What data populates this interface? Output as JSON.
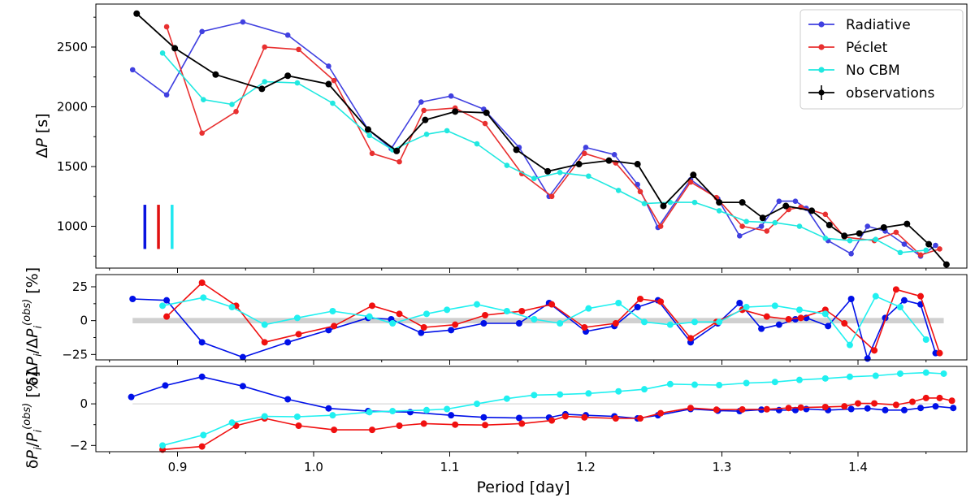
{
  "chart_data": [
    {
      "type": "line",
      "ylabel": "ΔP [s]",
      "ylim": [
        650,
        2860
      ],
      "xlim": [
        0.84,
        1.48
      ],
      "yticks": [
        1000,
        1500,
        2000,
        2500
      ],
      "legend_position": "top-right",
      "legend": [
        "Radiative",
        "Péclet",
        "No CBM",
        "observations"
      ],
      "series": [
        {
          "name": "Radiative",
          "color": "#4040e0",
          "x": [
            0.867,
            0.892,
            0.918,
            0.948,
            0.981,
            1.011,
            1.04,
            1.057,
            1.079,
            1.101,
            1.125,
            1.151,
            1.173,
            1.2,
            1.221,
            1.238,
            1.253,
            1.277,
            1.297,
            1.313,
            1.329,
            1.342,
            1.354,
            1.362,
            1.378,
            1.395,
            1.407,
            1.42,
            1.434,
            1.446,
            1.457
          ],
          "y": [
            2310,
            2100,
            2630,
            2710,
            2600,
            2340,
            1810,
            1650,
            2040,
            2090,
            1980,
            1660,
            1250,
            1660,
            1600,
            1350,
            990,
            1390,
            1230,
            920,
            1000,
            1210,
            1210,
            1150,
            880,
            770,
            1000,
            960,
            850,
            750,
            840
          ]
        },
        {
          "name": "Péclet",
          "color": "#e83030",
          "x": [
            0.892,
            0.918,
            0.943,
            0.964,
            0.989,
            1.015,
            1.043,
            1.063,
            1.081,
            1.104,
            1.126,
            1.153,
            1.175,
            1.199,
            1.222,
            1.24,
            1.255,
            1.277,
            1.296,
            1.315,
            1.333,
            1.349,
            1.358,
            1.376,
            1.39,
            1.412,
            1.428,
            1.446,
            1.46
          ],
          "y": [
            2670,
            1780,
            1960,
            2500,
            2480,
            2220,
            1610,
            1540,
            1970,
            1990,
            1860,
            1440,
            1250,
            1610,
            1530,
            1290,
            1000,
            1370,
            1240,
            1000,
            960,
            1140,
            1160,
            1100,
            910,
            880,
            950,
            760,
            810
          ]
        },
        {
          "name": "No CBM",
          "color": "#20e8e0",
          "x": [
            0.889,
            0.919,
            0.94,
            0.964,
            0.988,
            1.014,
            1.041,
            1.058,
            1.083,
            1.098,
            1.12,
            1.142,
            1.162,
            1.181,
            1.202,
            1.224,
            1.243,
            1.262,
            1.28,
            1.298,
            1.318,
            1.339,
            1.357,
            1.376,
            1.394,
            1.413,
            1.431,
            1.45
          ],
          "y": [
            2450,
            2060,
            2020,
            2210,
            2200,
            2030,
            1760,
            1640,
            1770,
            1800,
            1690,
            1510,
            1400,
            1450,
            1420,
            1300,
            1190,
            1200,
            1200,
            1130,
            1040,
            1030,
            1000,
            900,
            880,
            890,
            780,
            800
          ]
        },
        {
          "name": "observations",
          "color": "#000000",
          "x": [
            0.87,
            0.898,
            0.928,
            0.962,
            0.981,
            1.011,
            1.04,
            1.061,
            1.082,
            1.104,
            1.127,
            1.149,
            1.172,
            1.195,
            1.217,
            1.238,
            1.257,
            1.279,
            1.298,
            1.315,
            1.33,
            1.347,
            1.366,
            1.379,
            1.39,
            1.401,
            1.419,
            1.436,
            1.452,
            1.465
          ],
          "y": [
            2780,
            2490,
            2270,
            2150,
            2260,
            2190,
            1810,
            1630,
            1890,
            1960,
            1950,
            1640,
            1460,
            1520,
            1550,
            1520,
            1170,
            1430,
            1200,
            1200,
            1070,
            1170,
            1130,
            1010,
            920,
            940,
            990,
            1020,
            850,
            680
          ]
        }
      ],
      "markers_vertical": [
        {
          "x": 0.876,
          "y0": 810,
          "y1": 1180,
          "color": "#0a14e0"
        },
        {
          "x": 0.886,
          "y0": 810,
          "y1": 1180,
          "color": "#e01010"
        },
        {
          "x": 0.896,
          "y0": 810,
          "y1": 1180,
          "color": "#20e8f0"
        }
      ]
    },
    {
      "type": "line",
      "ylabel": "δΔP_i/ΔP_i^(obs) [%]",
      "ylim": [
        -29,
        34
      ],
      "xlim": [
        0.84,
        1.48
      ],
      "yticks": [
        -25,
        0,
        25
      ],
      "band": {
        "x0": 0.867,
        "x1": 1.463,
        "y0": -2,
        "y1": 2
      },
      "series": [
        {
          "name": "Radiative",
          "color": "#0010e8",
          "x": [
            0.867,
            0.892,
            0.918,
            0.948,
            0.981,
            1.011,
            1.04,
            1.057,
            1.079,
            1.101,
            1.125,
            1.151,
            1.173,
            1.2,
            1.221,
            1.238,
            1.253,
            1.277,
            1.297,
            1.313,
            1.329,
            1.342,
            1.354,
            1.362,
            1.378,
            1.395,
            1.407,
            1.42,
            1.434,
            1.446,
            1.457
          ],
          "y": [
            16,
            15,
            -16,
            -27,
            -16,
            -7,
            2,
            1,
            -9,
            -7,
            -2,
            -2,
            13,
            -8,
            -4,
            10,
            15,
            -16,
            -2,
            13,
            -6,
            -3,
            1,
            2,
            -4,
            16,
            -28,
            2,
            15,
            12,
            -24
          ]
        },
        {
          "name": "Péclet",
          "color": "#f01010",
          "x": [
            0.892,
            0.918,
            0.943,
            0.964,
            0.989,
            1.015,
            1.043,
            1.063,
            1.081,
            1.104,
            1.126,
            1.153,
            1.175,
            1.199,
            1.222,
            1.24,
            1.255,
            1.277,
            1.296,
            1.315,
            1.333,
            1.349,
            1.358,
            1.376,
            1.39,
            1.412,
            1.428,
            1.446,
            1.46
          ],
          "y": [
            3,
            28,
            11,
            -16,
            -10,
            -4,
            11,
            5,
            -5,
            -3,
            4,
            7,
            12,
            -5,
            -2,
            16,
            14,
            -13,
            -1,
            8,
            3,
            1,
            2,
            8,
            -2,
            -22,
            23,
            18,
            -24
          ]
        },
        {
          "name": "No CBM",
          "color": "#20f0f0",
          "x": [
            0.889,
            0.919,
            0.94,
            0.964,
            0.988,
            1.014,
            1.041,
            1.058,
            1.083,
            1.098,
            1.12,
            1.142,
            1.162,
            1.181,
            1.202,
            1.224,
            1.243,
            1.262,
            1.28,
            1.298,
            1.318,
            1.339,
            1.357,
            1.376,
            1.394,
            1.413,
            1.431,
            1.45
          ],
          "y": [
            11,
            17,
            10,
            -3,
            2,
            7,
            3,
            -2,
            5,
            8,
            12,
            7,
            1,
            -2,
            9,
            13,
            -1,
            -3,
            -1,
            -1,
            10,
            11,
            8,
            5,
            -18,
            18,
            10,
            -14
          ]
        }
      ]
    },
    {
      "type": "line",
      "ylabel": "δP_i/P_i^(obs) [%]",
      "xlabel": "Period [day]",
      "ylim": [
        -2.3,
        1.8
      ],
      "xlim": [
        0.84,
        1.48
      ],
      "yticks": [
        -2,
        0
      ],
      "xticks": [
        0.9,
        1.0,
        1.1,
        1.2,
        1.3,
        1.4
      ],
      "baseline": 0,
      "series": [
        {
          "name": "Radiative",
          "color": "#0010e8",
          "x": [
            0.866,
            0.891,
            0.918,
            0.948,
            0.981,
            1.011,
            1.04,
            1.071,
            1.101,
            1.125,
            1.151,
            1.173,
            1.185,
            1.2,
            1.221,
            1.238,
            1.253,
            1.277,
            1.297,
            1.313,
            1.329,
            1.342,
            1.354,
            1.362,
            1.378,
            1.395,
            1.407,
            1.42,
            1.434,
            1.446,
            1.457,
            1.47
          ],
          "y": [
            0.33,
            0.88,
            1.3,
            0.85,
            0.22,
            -0.22,
            -0.35,
            -0.4,
            -0.55,
            -0.65,
            -0.68,
            -0.66,
            -0.5,
            -0.55,
            -0.6,
            -0.7,
            -0.55,
            -0.25,
            -0.33,
            -0.35,
            -0.28,
            -0.3,
            -0.3,
            -0.25,
            -0.3,
            -0.25,
            -0.22,
            -0.3,
            -0.3,
            -0.2,
            -0.12,
            -0.2
          ]
        },
        {
          "name": "Péclet",
          "color": "#f01010",
          "x": [
            0.889,
            0.918,
            0.943,
            0.964,
            0.989,
            1.015,
            1.043,
            1.063,
            1.081,
            1.104,
            1.126,
            1.153,
            1.175,
            1.185,
            1.199,
            1.222,
            1.24,
            1.255,
            1.277,
            1.296,
            1.315,
            1.333,
            1.349,
            1.358,
            1.376,
            1.39,
            1.4,
            1.412,
            1.428,
            1.44,
            1.45,
            1.46,
            1.469
          ],
          "y": [
            -2.2,
            -2.05,
            -1.05,
            -0.7,
            -1.05,
            -1.25,
            -1.25,
            -1.05,
            -0.95,
            -1.0,
            -1.02,
            -0.95,
            -0.8,
            -0.6,
            -0.65,
            -0.7,
            -0.7,
            -0.45,
            -0.2,
            -0.28,
            -0.27,
            -0.26,
            -0.2,
            -0.18,
            -0.15,
            -0.12,
            0.02,
            0.02,
            -0.05,
            0.1,
            0.28,
            0.28,
            0.15
          ]
        },
        {
          "name": "No CBM",
          "color": "#20f0f0",
          "x": [
            0.889,
            0.919,
            0.94,
            0.964,
            0.988,
            1.014,
            1.041,
            1.058,
            1.083,
            1.098,
            1.12,
            1.142,
            1.162,
            1.181,
            1.202,
            1.224,
            1.243,
            1.262,
            1.28,
            1.298,
            1.318,
            1.339,
            1.357,
            1.376,
            1.394,
            1.413,
            1.431,
            1.45,
            1.463
          ],
          "y": [
            -2.0,
            -1.5,
            -0.9,
            -0.6,
            -0.62,
            -0.55,
            -0.4,
            -0.35,
            -0.3,
            -0.25,
            0.0,
            0.25,
            0.42,
            0.45,
            0.5,
            0.6,
            0.7,
            0.95,
            0.92,
            0.9,
            1.0,
            1.05,
            1.15,
            1.22,
            1.3,
            1.35,
            1.45,
            1.5,
            1.45
          ]
        }
      ]
    }
  ]
}
